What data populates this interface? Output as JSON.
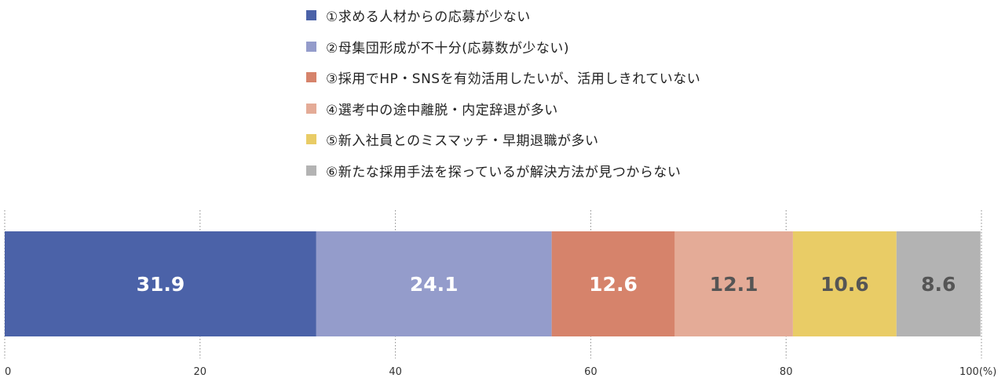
{
  "chart_data": {
    "type": "stacked-bar",
    "orientation": "horizontal",
    "xlim": [
      0,
      100
    ],
    "x_ticks": [
      {
        "value": 0,
        "label": "0"
      },
      {
        "value": 20,
        "label": "20"
      },
      {
        "value": 40,
        "label": "40"
      },
      {
        "value": 60,
        "label": "60"
      },
      {
        "value": 80,
        "label": "80"
      },
      {
        "value": 100,
        "label": "100(%)"
      }
    ],
    "grid": "vertical dotted",
    "legend_position": "top",
    "series": [
      {
        "name": "①求める人材からの応募が少ない",
        "value": 31.9,
        "color": "#4b62a8",
        "label_color": "#ffffff"
      },
      {
        "name": "②母集団形成が不十分(応募数が少ない)",
        "value": 24.1,
        "color": "#949ccb",
        "label_color": "#ffffff"
      },
      {
        "name": "③採用でHP・SNSを有効活用したいが、活用しきれていない",
        "value": 12.6,
        "color": "#d6836b",
        "label_color": "#ffffff"
      },
      {
        "name": "④選考中の途中離脱・内定辞退が多い",
        "value": 12.1,
        "color": "#e4ab97",
        "label_color": "#555555"
      },
      {
        "name": "⑤新入社員とのミスマッチ・早期退職が多い",
        "value": 10.6,
        "color": "#e9cc66",
        "label_color": "#555555"
      },
      {
        "name": "⑥新たな採用手法を探っているが解決方法が見つからない",
        "value": 8.6,
        "color": "#b3b3b3",
        "label_color": "#555555"
      }
    ]
  }
}
